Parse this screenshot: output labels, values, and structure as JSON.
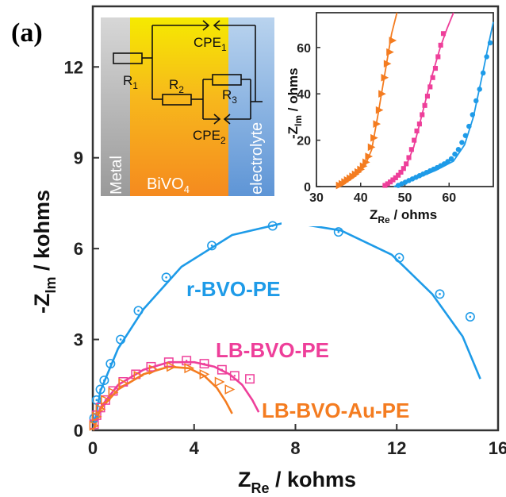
{
  "panel_label": "(a)",
  "colors": {
    "r": "#1e9be8",
    "lb": "#ee3f9a",
    "au": "#f47c20"
  },
  "chart_data": [
    {
      "type": "scatter",
      "xlabel": "Z",
      "xlabel_sub": "Re",
      "xlabel_unit": " / kohms",
      "ylabel": "-Z",
      "ylabel_sub": "Im",
      "ylabel_unit": " / kohms",
      "xlim": [
        0,
        16
      ],
      "ylim": [
        0,
        14
      ],
      "xticks": [
        "0",
        "4",
        "8",
        "12",
        "16"
      ],
      "yticks": [
        "0",
        "3",
        "6",
        "9",
        "12"
      ],
      "series": [
        {
          "name": "r-BVO-PE",
          "marker": "circle-dot",
          "points": [
            [
              0.05,
              0.4
            ],
            [
              0.15,
              1.0
            ],
            [
              0.3,
              1.35
            ],
            [
              0.45,
              1.65
            ],
            [
              0.7,
              2.2
            ],
            [
              1.1,
              3.0
            ],
            [
              1.8,
              3.95
            ],
            [
              2.9,
              5.05
            ],
            [
              4.7,
              6.1
            ],
            [
              7.1,
              6.75
            ],
            [
              9.7,
              6.55
            ],
            [
              12.1,
              5.7
            ],
            [
              13.7,
              4.5
            ],
            [
              14.9,
              3.75
            ]
          ],
          "fit": [
            [
              0.02,
              0.0
            ],
            [
              0.3,
              1.3
            ],
            [
              1.0,
              2.7
            ],
            [
              2.0,
              4.0
            ],
            [
              3.5,
              5.4
            ],
            [
              5.5,
              6.45
            ],
            [
              7.7,
              6.88
            ],
            [
              9.8,
              6.6
            ],
            [
              11.8,
              5.8
            ],
            [
              13.4,
              4.5
            ],
            [
              14.6,
              3.1
            ],
            [
              15.3,
              1.7
            ]
          ]
        },
        {
          "name": "LB-BVO-PE",
          "marker": "square-dot",
          "points": [
            [
              0.05,
              0.2
            ],
            [
              0.15,
              0.5
            ],
            [
              0.3,
              0.75
            ],
            [
              0.5,
              1.0
            ],
            [
              0.8,
              1.3
            ],
            [
              1.2,
              1.6
            ],
            [
              1.7,
              1.85
            ],
            [
              2.3,
              2.1
            ],
            [
              3.0,
              2.25
            ],
            [
              3.7,
              2.3
            ],
            [
              4.4,
              2.2
            ],
            [
              5.1,
              2.0
            ],
            [
              5.6,
              1.8
            ],
            [
              6.2,
              1.7
            ]
          ],
          "fit": [
            [
              0.02,
              0.0
            ],
            [
              0.3,
              0.75
            ],
            [
              1.0,
              1.5
            ],
            [
              2.0,
              2.0
            ],
            [
              3.0,
              2.25
            ],
            [
              4.0,
              2.25
            ],
            [
              4.8,
              2.1
            ],
            [
              5.4,
              1.85
            ],
            [
              5.9,
              1.5
            ],
            [
              6.3,
              1.0
            ],
            [
              6.55,
              0.6
            ]
          ]
        },
        {
          "name": "LB-BVO-Au-PE",
          "marker": "triangle-right",
          "points": [
            [
              0.05,
              0.15
            ],
            [
              0.15,
              0.45
            ],
            [
              0.3,
              0.7
            ],
            [
              0.5,
              1.0
            ],
            [
              0.8,
              1.25
            ],
            [
              1.2,
              1.55
            ],
            [
              1.8,
              1.8
            ],
            [
              2.4,
              2.0
            ],
            [
              3.1,
              2.1
            ],
            [
              3.8,
              2.05
            ],
            [
              4.4,
              1.85
            ],
            [
              5.0,
              1.6
            ],
            [
              5.4,
              1.35
            ]
          ],
          "fit": [
            [
              0.02,
              0.0
            ],
            [
              0.3,
              0.7
            ],
            [
              1.0,
              1.35
            ],
            [
              2.0,
              1.85
            ],
            [
              3.0,
              2.1
            ],
            [
              3.8,
              2.05
            ],
            [
              4.4,
              1.8
            ],
            [
              4.9,
              1.4
            ],
            [
              5.25,
              0.95
            ],
            [
              5.5,
              0.55
            ]
          ]
        }
      ]
    },
    {
      "type": "scatter",
      "role": "inset",
      "xlabel": "Z",
      "xlabel_sub": "Re",
      "xlabel_unit": " / ohms",
      "ylabel": "-Z",
      "ylabel_sub": "Im",
      "ylabel_unit": " / ohms",
      "xlim": [
        30,
        70
      ],
      "ylim": [
        0,
        75
      ],
      "xticks": [
        "30",
        "40",
        "50",
        "60"
      ],
      "yticks": [
        "0",
        "20",
        "40",
        "60"
      ],
      "series": [
        {
          "name": "LB-BVO-Au-PE",
          "marker": "triangle-right",
          "points": [
            [
              35.2,
              0.5
            ],
            [
              35.8,
              1.2
            ],
            [
              36.4,
              2.0
            ],
            [
              37.0,
              2.8
            ],
            [
              37.6,
              3.6
            ],
            [
              38.2,
              4.4
            ],
            [
              38.8,
              5.3
            ],
            [
              39.4,
              6.3
            ],
            [
              40.0,
              7.4
            ],
            [
              40.6,
              8.8
            ],
            [
              41.2,
              10.5
            ],
            [
              41.8,
              13
            ],
            [
              42.4,
              17
            ],
            [
              43.0,
              21
            ],
            [
              43.6,
              27
            ],
            [
              44.2,
              33
            ],
            [
              44.8,
              40
            ],
            [
              45.4,
              47
            ],
            [
              46.0,
              53
            ],
            [
              46.6,
              58
            ],
            [
              47.2,
              63
            ]
          ],
          "fit": [
            [
              34.8,
              0
            ],
            [
              37,
              2.5
            ],
            [
              39,
              5
            ],
            [
              41,
              9
            ],
            [
              42.5,
              16
            ],
            [
              44,
              32
            ],
            [
              45.5,
              49
            ],
            [
              47,
              66
            ],
            [
              48.2,
              75
            ]
          ]
        },
        {
          "name": "LB-BVO-PE",
          "marker": "square",
          "points": [
            [
              45.5,
              0.5
            ],
            [
              46.1,
              1.2
            ],
            [
              46.7,
              2.0
            ],
            [
              47.3,
              2.9
            ],
            [
              47.9,
              3.8
            ],
            [
              48.5,
              4.9
            ],
            [
              49.1,
              6.2
            ],
            [
              49.7,
              7.8
            ],
            [
              50.3,
              9.8
            ],
            [
              50.9,
              12.5
            ],
            [
              51.5,
              16
            ],
            [
              52.1,
              20
            ],
            [
              52.7,
              24
            ],
            [
              53.3,
              27
            ],
            [
              53.9,
              31
            ],
            [
              54.5,
              35
            ],
            [
              55.1,
              39
            ],
            [
              55.7,
              43
            ],
            [
              56.3,
              47
            ],
            [
              56.9,
              51
            ],
            [
              57.5,
              56
            ],
            [
              58.1,
              61
            ],
            [
              58.7,
              66
            ]
          ],
          "fit": [
            [
              45.0,
              0
            ],
            [
              47,
              2.5
            ],
            [
              49,
              5.5
            ],
            [
              50.5,
              10
            ],
            [
              52,
              17
            ],
            [
              54,
              32
            ],
            [
              56,
              47
            ],
            [
              58,
              60
            ],
            [
              59.5,
              68
            ],
            [
              61,
              75
            ]
          ]
        },
        {
          "name": "r-BVO-PE",
          "marker": "circle",
          "points": [
            [
              48.5,
              0.5
            ],
            [
              49.3,
              1.2
            ],
            [
              50.1,
              1.9
            ],
            [
              50.9,
              2.6
            ],
            [
              51.7,
              3.3
            ],
            [
              52.5,
              4.0
            ],
            [
              53.3,
              4.7
            ],
            [
              54.1,
              5.4
            ],
            [
              54.9,
              6.1
            ],
            [
              55.7,
              6.8
            ],
            [
              56.5,
              7.5
            ],
            [
              57.3,
              8.2
            ],
            [
              58.1,
              9.0
            ],
            [
              58.9,
              9.8
            ],
            [
              59.7,
              10.8
            ],
            [
              60.5,
              12
            ],
            [
              61.3,
              14
            ],
            [
              62.1,
              16
            ],
            [
              62.9,
              19
            ],
            [
              63.7,
              22
            ],
            [
              64.5,
              26
            ],
            [
              65.3,
              31
            ],
            [
              66.1,
              37
            ],
            [
              66.9,
              42
            ],
            [
              67.7,
              49
            ],
            [
              68.5,
              56
            ],
            [
              69.3,
              62
            ]
          ],
          "fit": [
            [
              47.5,
              0
            ],
            [
              52,
              3
            ],
            [
              57,
              7
            ],
            [
              61,
              11
            ],
            [
              63.5,
              18
            ],
            [
              65.5,
              30
            ],
            [
              67.5,
              48
            ],
            [
              69,
              62
            ],
            [
              70,
              71
            ]
          ]
        }
      ]
    }
  ],
  "circuit": {
    "bands": [
      "Metal",
      "BiVO",
      "electrolyte"
    ],
    "bivo_sub": "4",
    "elements": {
      "R1": "R",
      "R1_sub": "1",
      "R2": "R",
      "R2_sub": "2",
      "R3": "R",
      "R3_sub": "3",
      "CPE1": "CPE",
      "CPE1_sub": "1",
      "CPE2": "CPE",
      "CPE2_sub": "2"
    }
  }
}
